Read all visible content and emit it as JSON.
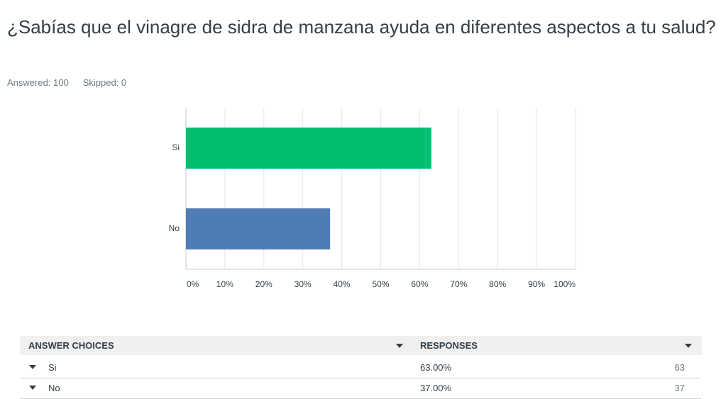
{
  "title": "¿Sabías que el vinagre de sidra de manzana ayuda en diferentes aspectos a tu salud?",
  "answered": "Answered: 100",
  "skipped": "Skipped: 0",
  "chart_data": {
    "type": "hbar",
    "categories": [
      "Si",
      "No"
    ],
    "values": [
      63,
      37
    ],
    "colors": [
      "#00bf6f",
      "#507cb6"
    ],
    "xlim": [
      0,
      100
    ],
    "xticks": [
      {
        "value": 0,
        "label": "0%"
      },
      {
        "value": 10,
        "label": "10%"
      },
      {
        "value": 20,
        "label": "20%"
      },
      {
        "value": 30,
        "label": "30%"
      },
      {
        "value": 40,
        "label": "40%"
      },
      {
        "value": 50,
        "label": "50%"
      },
      {
        "value": 60,
        "label": "60%"
      },
      {
        "value": 70,
        "label": "70%"
      },
      {
        "value": 80,
        "label": "80%"
      },
      {
        "value": 90,
        "label": "90%"
      },
      {
        "value": 100,
        "label": "100%"
      }
    ],
    "grid": true
  },
  "table": {
    "headers": [
      "ANSWER CHOICES",
      "RESPONSES"
    ],
    "rows": [
      [
        "Si",
        "63.00%",
        63
      ],
      [
        "No",
        "37.00%",
        37
      ]
    ]
  }
}
